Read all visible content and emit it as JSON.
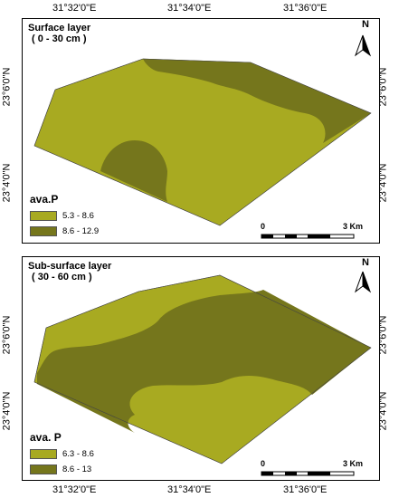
{
  "axes": {
    "top_ticks": [
      "31°32'0\"E",
      "31°34'0\"E",
      "31°36'0\"E"
    ],
    "bottom_ticks": [
      "31°32'0\"E",
      "31°34'0\"E",
      "31°36'0\"E"
    ],
    "left_ticks_panel1": [
      "23°6'0\"N",
      "23°4'0\"N"
    ],
    "right_ticks_panel1": [
      "23°6'0\"N",
      "23°4'0\"N"
    ],
    "left_ticks_panel2": [
      "23°6'0\"N",
      "23°4'0\"N"
    ],
    "right_ticks_panel2": [
      "23°6'0\"N",
      "23°4'0\"N"
    ]
  },
  "panels": [
    {
      "title_line1": "Surface layer",
      "title_line2": "( 0 - 30 cm )",
      "legend_title": "ava.P",
      "legend": [
        {
          "label": "5.3 - 8.6",
          "color": "#a8aa21"
        },
        {
          "label": "8.6 - 12.9",
          "color": "#75761c"
        }
      ],
      "north": "N",
      "scale_start": "0",
      "scale_end": "3 Km"
    },
    {
      "title_line1": "Sub-surface layer",
      "title_line2": "( 30 - 60 cm )",
      "legend_title": "ava. P",
      "legend": [
        {
          "label": "6.3 - 8.6",
          "color": "#a8aa21"
        },
        {
          "label": "8.6 - 13",
          "color": "#75761c"
        }
      ],
      "north": "N",
      "scale_start": "0",
      "scale_end": "3 Km"
    }
  ],
  "colors": {
    "light_class": "#a8aa21",
    "dark_class": "#75761c"
  }
}
